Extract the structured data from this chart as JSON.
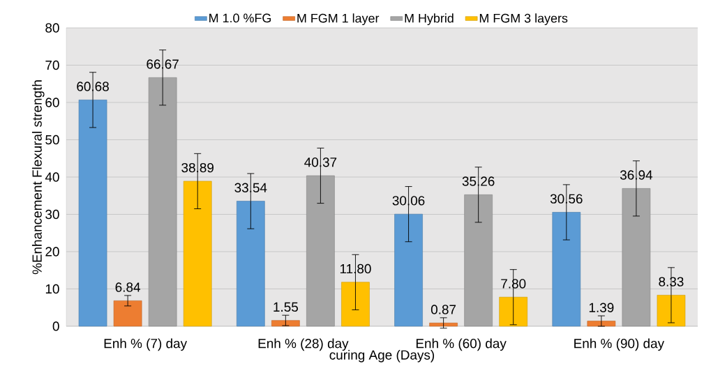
{
  "chart_data": {
    "type": "bar",
    "xlabel": "curing Age (Days)",
    "ylabel": "%Enhancement Flexural strength",
    "categories": [
      "Enh % (7) day",
      "Enh % (28) day",
      "Enh % (60) day",
      "Enh % (90) day"
    ],
    "series": [
      {
        "name": "M 1.0 %FG",
        "color": "#5b9bd5",
        "values": [
          60.68,
          33.54,
          30.06,
          30.56
        ],
        "errors": [
          7.4,
          7.4,
          7.4,
          7.4
        ],
        "value_labels": [
          "60.68",
          "33.54",
          "30.06",
          "30.56"
        ]
      },
      {
        "name": "M FGM 1 layer",
        "color": "#ed7d31",
        "values": [
          6.84,
          1.55,
          0.87,
          1.39
        ],
        "errors": [
          1.4,
          1.4,
          1.4,
          1.4
        ],
        "value_labels": [
          "6.84",
          "1.55",
          "0.87",
          "1.39"
        ]
      },
      {
        "name": "M Hybrid",
        "color": "#a5a5a5",
        "values": [
          66.67,
          40.37,
          35.26,
          36.94
        ],
        "errors": [
          7.4,
          7.4,
          7.4,
          7.4
        ],
        "value_labels": [
          "66.67",
          "40.37",
          "35.26",
          "36.94"
        ]
      },
      {
        "name": "M FGM 3 layers",
        "color": "#ffc000",
        "values": [
          38.89,
          11.8,
          7.8,
          8.33
        ],
        "errors": [
          7.4,
          7.4,
          7.4,
          7.4
        ],
        "value_labels": [
          "38.89",
          "11.80",
          "7.80",
          "8.33"
        ]
      }
    ],
    "ylim": [
      0,
      80
    ],
    "yticks": [
      0,
      10,
      20,
      30,
      40,
      50,
      60,
      70,
      80
    ],
    "grid": "y",
    "legend": "top"
  }
}
